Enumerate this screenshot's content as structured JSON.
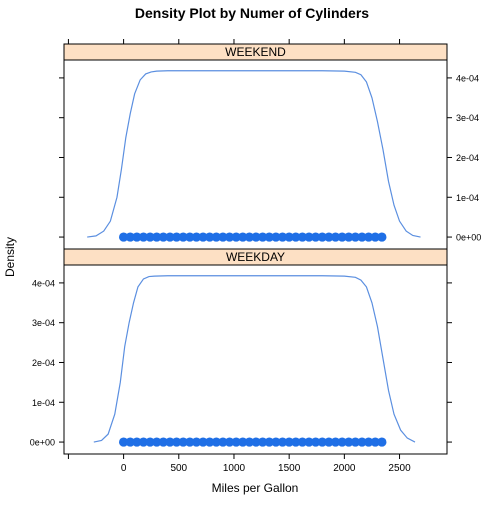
{
  "chart_data": {
    "type": "line",
    "title": "Density Plot by Numer of Cylinders",
    "xlabel": "Miles per Gallon",
    "ylabel": "Density",
    "xlim": [
      -540,
      2930
    ],
    "ylim": [
      -3e-05,
      0.000445
    ],
    "x_ticks": [
      0,
      500,
      1000,
      1500,
      2000,
      2500
    ],
    "x_tick_labels": [
      "0",
      "500",
      "1000",
      "1500",
      "2000",
      "2500"
    ],
    "y_ticks": [
      0,
      0.0001,
      0.0002,
      0.0003,
      0.0004
    ],
    "y_tick_labels": [
      "0e+00",
      "1e-04",
      "2e-04",
      "3e-04",
      "4e-04"
    ],
    "colors": {
      "line": "#5b8fe0",
      "points": "#1f6fe6",
      "strip": "#fde0c4"
    },
    "panels": [
      {
        "strip_label": "WEEKEND",
        "density_curve": {
          "x": [
            -330,
            -250,
            -180,
            -120,
            -60,
            -20,
            20,
            60,
            100,
            150,
            200,
            250,
            300,
            400,
            600,
            800,
            1000,
            1200,
            1400,
            1600,
            1800,
            2000,
            2100,
            2150,
            2200,
            2250,
            2300,
            2350,
            2400,
            2450,
            2500,
            2560,
            2620,
            2690
          ],
          "y": [
            0,
            3e-06,
            1.5e-05,
            4e-05,
            0.0001,
            0.00017,
            0.00025,
            0.00031,
            0.00036,
            0.000395,
            0.00041,
            0.000415,
            0.000417,
            0.000418,
            0.000418,
            0.000418,
            0.000418,
            0.000418,
            0.000418,
            0.000418,
            0.000418,
            0.000417,
            0.000414,
            0.000408,
            0.00039,
            0.00035,
            0.00029,
            0.00022,
            0.00014,
            8e-05,
            4e-05,
            1.5e-05,
            4e-06,
            0
          ]
        },
        "rug_points": {
          "x": [
            0,
            60,
            120,
            180,
            240,
            300,
            360,
            420,
            480,
            540,
            600,
            660,
            720,
            780,
            840,
            900,
            960,
            1020,
            1080,
            1140,
            1200,
            1260,
            1320,
            1380,
            1440,
            1500,
            1560,
            1620,
            1680,
            1740,
            1800,
            1860,
            1920,
            1980,
            2040,
            2100,
            2160,
            2220,
            2280,
            2340
          ],
          "y": 0
        }
      },
      {
        "strip_label": "WEEKDAY",
        "density_curve": {
          "x": [
            -270,
            -200,
            -140,
            -80,
            -30,
            10,
            50,
            90,
            130,
            180,
            230,
            280,
            400,
            600,
            800,
            1000,
            1200,
            1400,
            1600,
            1800,
            2000,
            2100,
            2150,
            2200,
            2250,
            2300,
            2350,
            2400,
            2450,
            2510,
            2570,
            2640
          ],
          "y": [
            0,
            4e-06,
            2e-05,
            7e-05,
            0.00015,
            0.00024,
            0.0003,
            0.00035,
            0.00039,
            0.00041,
            0.000416,
            0.000417,
            0.000418,
            0.000418,
            0.000418,
            0.000418,
            0.000418,
            0.000418,
            0.000418,
            0.000418,
            0.000417,
            0.000414,
            0.000407,
            0.00039,
            0.00035,
            0.00029,
            0.00021,
            0.00013,
            7e-05,
            3e-05,
            1e-05,
            0
          ]
        },
        "rug_points": {
          "x": [
            0,
            60,
            120,
            180,
            240,
            300,
            360,
            420,
            480,
            540,
            600,
            660,
            720,
            780,
            840,
            900,
            960,
            1020,
            1080,
            1140,
            1200,
            1260,
            1320,
            1380,
            1440,
            1500,
            1560,
            1620,
            1680,
            1740,
            1800,
            1860,
            1920,
            1980,
            2040,
            2100,
            2160,
            2220,
            2280,
            2340
          ],
          "y": 0
        }
      }
    ]
  }
}
